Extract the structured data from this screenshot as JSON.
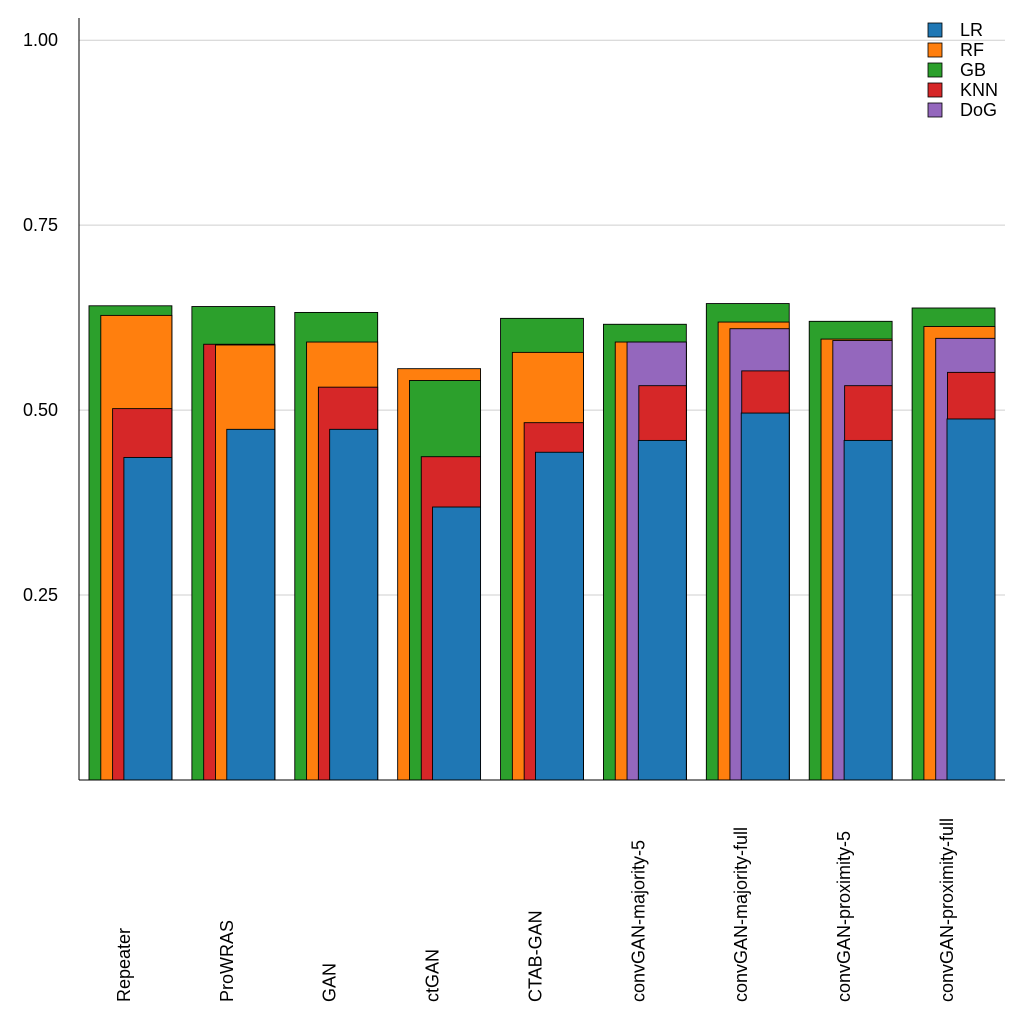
{
  "chart_data": {
    "type": "bar",
    "title": "",
    "xlabel": "",
    "ylabel": "",
    "ylim": [
      0,
      1.03
    ],
    "yticks": [
      "0.25",
      "0.50",
      "0.75",
      "1.00"
    ],
    "ytick_values": [
      0.25,
      0.5,
      0.75,
      1.0
    ],
    "grid": true,
    "legend_position": "top-right",
    "categories": [
      "Repeater",
      "ProWRAS",
      "GAN",
      "ctGAN",
      "CTAB-GAN",
      "convGAN-majority-5",
      "convGAN-majority-full",
      "convGAN-proximity-5",
      "convGAN-proximity-full"
    ],
    "series": [
      {
        "name": "LR",
        "color": "#1f77b4",
        "values": [
          0.436,
          0.474,
          0.474,
          0.369,
          0.443,
          0.459,
          0.496,
          0.459,
          0.488
        ]
      },
      {
        "name": "RF",
        "color": "#ff7f0e",
        "values": [
          0.628,
          0.588,
          0.592,
          0.556,
          0.578,
          0.592,
          0.619,
          0.596,
          0.613
        ]
      },
      {
        "name": "GB",
        "color": "#2ca02c",
        "values": [
          0.641,
          0.64,
          0.632,
          0.54,
          0.624,
          0.616,
          0.644,
          0.62,
          0.638
        ]
      },
      {
        "name": "KNN",
        "color": "#d62728",
        "values": [
          0.502,
          0.589,
          0.531,
          0.437,
          0.483,
          0.533,
          0.553,
          0.533,
          0.551
        ]
      },
      {
        "name": "DoG",
        "color": "#9467bd",
        "values": [
          null,
          null,
          null,
          null,
          null,
          0.592,
          0.61,
          0.594,
          0.597
        ]
      }
    ]
  }
}
